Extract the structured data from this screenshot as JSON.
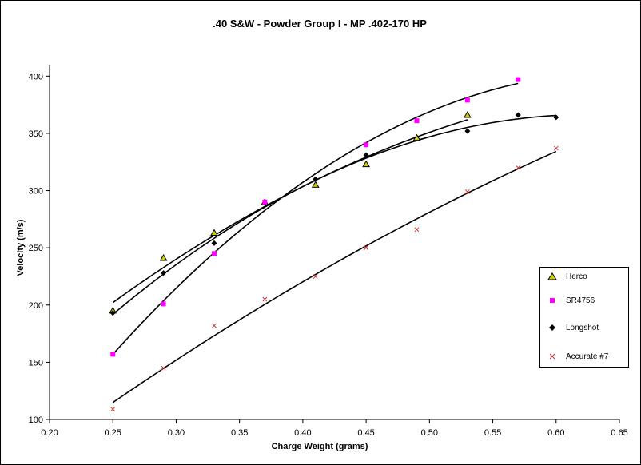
{
  "chart_data": {
    "type": "scatter",
    "title": ".40 S&W - Powder Group I - MP .402-170 HP",
    "xlabel": "Charge Weight (grams)",
    "ylabel": "Velocity (m/s)",
    "xlim": [
      0.2,
      0.65
    ],
    "ylim": [
      100,
      410
    ],
    "x_ticks": [
      "0.20",
      "0.25",
      "0.30",
      "0.35",
      "0.40",
      "0.45",
      "0.50",
      "0.55",
      "0.60",
      "0.65"
    ],
    "y_ticks": [
      "100",
      "150",
      "200",
      "250",
      "300",
      "350",
      "400"
    ],
    "legend_position": "right",
    "trendlines": true,
    "series": [
      {
        "name": "Herco",
        "marker": "triangle",
        "color": "#cccc00",
        "points": [
          [
            0.25,
            195
          ],
          [
            0.29,
            241
          ],
          [
            0.33,
            263
          ],
          [
            0.37,
            290
          ],
          [
            0.41,
            305
          ],
          [
            0.45,
            323
          ],
          [
            0.49,
            346
          ],
          [
            0.53,
            366
          ]
        ]
      },
      {
        "name": "SR4756",
        "marker": "square",
        "color": "#ff00ff",
        "points": [
          [
            0.25,
            157
          ],
          [
            0.29,
            201
          ],
          [
            0.33,
            245
          ],
          [
            0.37,
            290
          ],
          [
            0.45,
            340
          ],
          [
            0.49,
            361
          ],
          [
            0.53,
            379
          ],
          [
            0.57,
            397
          ]
        ]
      },
      {
        "name": "Longshot",
        "marker": "diamond",
        "color": "#000000",
        "points": [
          [
            0.25,
            193
          ],
          [
            0.29,
            228
          ],
          [
            0.33,
            254
          ],
          [
            0.41,
            310
          ],
          [
            0.45,
            331
          ],
          [
            0.53,
            352
          ],
          [
            0.57,
            366
          ],
          [
            0.6,
            364
          ]
        ]
      },
      {
        "name": "Accurate #7",
        "marker": "x",
        "color": "#cc3333",
        "points": [
          [
            0.25,
            109
          ],
          [
            0.29,
            145
          ],
          [
            0.33,
            182
          ],
          [
            0.37,
            205
          ],
          [
            0.41,
            225
          ],
          [
            0.45,
            250
          ],
          [
            0.49,
            266
          ],
          [
            0.53,
            299
          ],
          [
            0.57,
            320
          ],
          [
            0.6,
            337
          ]
        ]
      }
    ]
  }
}
